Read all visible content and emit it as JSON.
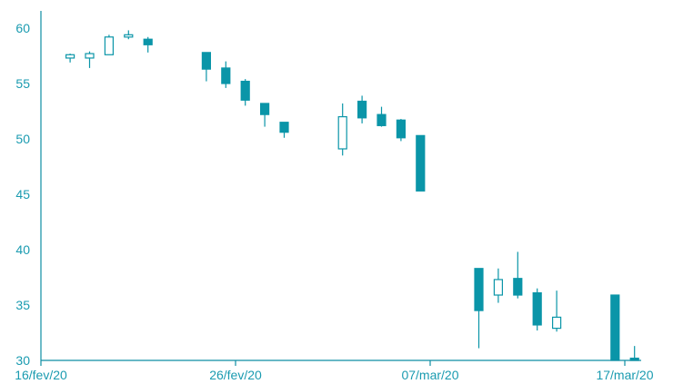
{
  "chart_data": {
    "type": "candlestick",
    "title": "",
    "xlabel": "",
    "ylabel": "",
    "ylim": [
      30,
      62
    ],
    "y_ticks": [
      30,
      35,
      40,
      45,
      50,
      55,
      60
    ],
    "x_tick_labels": [
      "16/fev/20",
      "26/fev/20",
      "07/mar/20",
      "17/mar/20"
    ],
    "x_tick_days": [
      0,
      10,
      20,
      30
    ],
    "colors": {
      "up": "#ffffff",
      "down": "#0a95a8",
      "stroke": "#0a95a8",
      "axis": "#0f8ea3",
      "text": "#1a9bb0"
    },
    "candles": [
      {
        "day": 1.5,
        "open": 57.3,
        "high": 57.7,
        "low": 56.9,
        "close": 57.6
      },
      {
        "day": 2.5,
        "open": 57.3,
        "high": 57.9,
        "low": 56.4,
        "close": 57.7
      },
      {
        "day": 3.5,
        "open": 57.6,
        "high": 59.4,
        "low": 57.6,
        "close": 59.2
      },
      {
        "day": 4.5,
        "open": 59.2,
        "high": 59.8,
        "low": 59.0,
        "close": 59.4
      },
      {
        "day": 5.5,
        "open": 59.0,
        "high": 59.2,
        "low": 57.8,
        "close": 58.5
      },
      {
        "day": 8.5,
        "open": 57.8,
        "high": 57.8,
        "low": 55.2,
        "close": 56.3
      },
      {
        "day": 9.5,
        "open": 56.4,
        "high": 57.0,
        "low": 54.6,
        "close": 55.0
      },
      {
        "day": 10.5,
        "open": 55.2,
        "high": 55.4,
        "low": 53.0,
        "close": 53.5
      },
      {
        "day": 11.5,
        "open": 53.2,
        "high": 53.2,
        "low": 51.1,
        "close": 52.2
      },
      {
        "day": 12.5,
        "open": 51.5,
        "high": 51.5,
        "low": 50.1,
        "close": 50.6
      },
      {
        "day": 15.5,
        "open": 49.1,
        "high": 53.2,
        "low": 48.5,
        "close": 52.0
      },
      {
        "day": 16.5,
        "open": 53.4,
        "high": 53.9,
        "low": 51.4,
        "close": 51.9
      },
      {
        "day": 17.5,
        "open": 52.2,
        "high": 52.9,
        "low": 51.1,
        "close": 51.2
      },
      {
        "day": 18.5,
        "open": 51.7,
        "high": 51.8,
        "low": 49.8,
        "close": 50.1
      },
      {
        "day": 19.5,
        "open": 50.3,
        "high": 50.3,
        "low": 45.3,
        "close": 45.3
      },
      {
        "day": 22.5,
        "open": 38.3,
        "high": 38.3,
        "low": 31.1,
        "close": 34.5
      },
      {
        "day": 23.5,
        "open": 35.9,
        "high": 38.3,
        "low": 35.2,
        "close": 37.3
      },
      {
        "day": 24.5,
        "open": 37.4,
        "high": 39.8,
        "low": 35.6,
        "close": 35.9
      },
      {
        "day": 25.5,
        "open": 36.1,
        "high": 36.5,
        "low": 32.7,
        "close": 33.2
      },
      {
        "day": 26.5,
        "open": 32.9,
        "high": 36.3,
        "low": 32.6,
        "close": 33.9
      },
      {
        "day": 29.5,
        "open": 35.9,
        "high": 35.9,
        "low": 30.0,
        "close": 30.0
      },
      {
        "day": 30.5,
        "open": 30.2,
        "high": 31.3,
        "low": 30.0,
        "close": 30.1
      }
    ]
  }
}
